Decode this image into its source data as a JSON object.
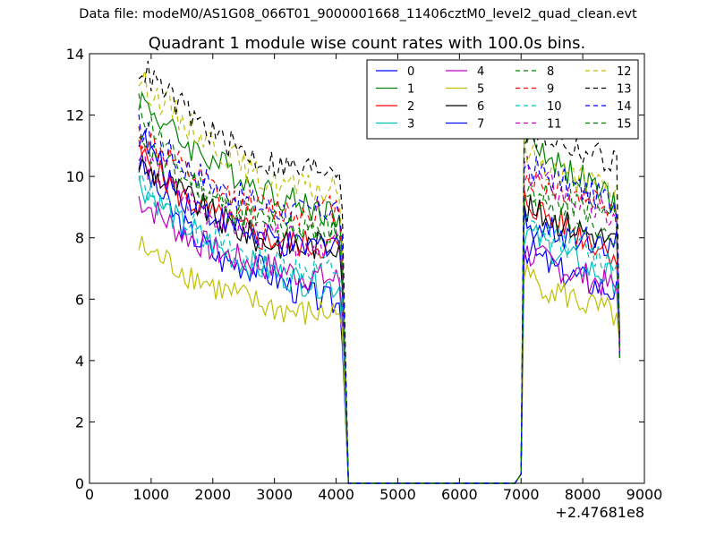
{
  "suptitle": "Data file: modeM0/AS1G08_066T01_9000001668_11406cztM0_level2_quad_clean.evt",
  "chart_data": {
    "type": "line",
    "title": "Quadrant 1 module wise count rates with 100.0s bins.",
    "xlabel": "",
    "ylabel": "",
    "xlim": [
      0,
      9000
    ],
    "ylim": [
      0,
      14
    ],
    "x_offset_label": "+2.47681e8",
    "xticks": [
      0,
      1000,
      2000,
      3000,
      4000,
      5000,
      6000,
      7000,
      8000,
      9000
    ],
    "yticks": [
      0,
      2,
      4,
      6,
      8,
      10,
      12,
      14
    ],
    "grid": false,
    "legend_position": "top-right",
    "legend_ncol": 4,
    "segments": [
      {
        "x_start": 800,
        "x_end": 4100,
        "step": 50
      },
      {
        "x_start": 7000,
        "x_end": 8600,
        "step": 50
      }
    ],
    "gap": {
      "x_start": 4200,
      "x_end": 6900,
      "step": 100,
      "value": 0
    },
    "series": [
      {
        "name": "0",
        "color": "#0000ff",
        "dash": "solid",
        "seg1": [
          10.5,
          8.5,
          7.3,
          7.0,
          6.2,
          5.8
        ],
        "seg2": [
          7.8,
          7.0,
          6.6,
          6.2
        ]
      },
      {
        "name": "1",
        "color": "#008000",
        "dash": "solid",
        "seg1": [
          12.6,
          11.2,
          10.4,
          9.6,
          9.1,
          8.7
        ],
        "seg2": [
          11.6,
          10.5,
          9.8,
          9.0
        ]
      },
      {
        "name": "2",
        "color": "#ff0000",
        "dash": "solid",
        "seg1": [
          10.8,
          9.4,
          8.6,
          8.0,
          7.8,
          7.7
        ],
        "seg2": [
          9.3,
          8.6,
          8.0,
          7.4
        ]
      },
      {
        "name": "3",
        "color": "#00bfbf",
        "dash": "solid",
        "seg1": [
          9.8,
          8.5,
          7.6,
          7.0,
          6.6,
          6.4
        ],
        "seg2": [
          8.3,
          7.6,
          7.0,
          6.6
        ]
      },
      {
        "name": "4",
        "color": "#bf00bf",
        "dash": "solid",
        "seg1": [
          9.3,
          8.2,
          7.5,
          7.1,
          6.8,
          6.6
        ],
        "seg2": [
          7.6,
          7.1,
          6.7,
          6.3
        ]
      },
      {
        "name": "5",
        "color": "#bfbf00",
        "dash": "solid",
        "seg1": [
          7.7,
          7.0,
          6.3,
          5.8,
          5.5,
          5.6
        ],
        "seg2": [
          6.8,
          6.3,
          5.8,
          5.4
        ]
      },
      {
        "name": "6",
        "color": "#000000",
        "dash": "solid",
        "seg1": [
          10.4,
          9.5,
          8.6,
          7.9,
          7.7,
          7.9
        ],
        "seg2": [
          9.0,
          8.6,
          8.2,
          7.8
        ]
      },
      {
        "name": "7",
        "color": "#0000ff",
        "dash": "solid",
        "seg1": [
          11.4,
          9.4,
          8.6,
          8.0,
          7.6,
          8.0
        ],
        "seg2": [
          8.6,
          8.2,
          8.0,
          7.8
        ]
      },
      {
        "name": "8",
        "color": "#008000",
        "dash": "dashed",
        "seg1": [
          12.3,
          10.3,
          9.1,
          8.6,
          8.3,
          8.3
        ],
        "seg2": [
          9.6,
          9.2,
          9.0,
          8.6
        ]
      },
      {
        "name": "9",
        "color": "#ff0000",
        "dash": "dashed",
        "seg1": [
          11.4,
          10.3,
          9.4,
          9.0,
          8.8,
          9.0
        ],
        "seg2": [
          10.0,
          9.6,
          9.3,
          9.0
        ]
      },
      {
        "name": "10",
        "color": "#00bfbf",
        "dash": "dashed",
        "seg1": [
          9.8,
          8.6,
          7.8,
          7.3,
          7.0,
          7.0
        ],
        "seg2": [
          8.5,
          8.0,
          7.6,
          7.2
        ]
      },
      {
        "name": "11",
        "color": "#bf00bf",
        "dash": "dashed",
        "seg1": [
          10.6,
          9.4,
          8.6,
          8.1,
          7.8,
          7.8
        ],
        "seg2": [
          10.3,
          9.6,
          9.0,
          8.5
        ]
      },
      {
        "name": "12",
        "color": "#bfbf00",
        "dash": "dashed",
        "seg1": [
          13.2,
          11.9,
          10.9,
          9.9,
          9.6,
          9.5
        ],
        "seg2": [
          10.9,
          10.2,
          9.8,
          9.5
        ]
      },
      {
        "name": "13",
        "color": "#000000",
        "dash": "dashed",
        "seg1": [
          13.6,
          12.3,
          11.2,
          10.5,
          10.2,
          10.4
        ],
        "seg2": [
          11.4,
          11.2,
          10.8,
          10.4
        ]
      },
      {
        "name": "14",
        "color": "#0000ff",
        "dash": "dashed",
        "seg1": [
          11.6,
          10.5,
          9.6,
          9.0,
          8.8,
          9.0
        ],
        "seg2": [
          10.5,
          9.9,
          9.5,
          9.1
        ]
      },
      {
        "name": "15",
        "color": "#008000",
        "dash": "dashed",
        "seg1": [
          11.0,
          10.0,
          9.0,
          8.5,
          8.2,
          8.3
        ],
        "seg2": [
          9.2,
          8.8,
          8.5,
          8.2
        ]
      }
    ]
  }
}
